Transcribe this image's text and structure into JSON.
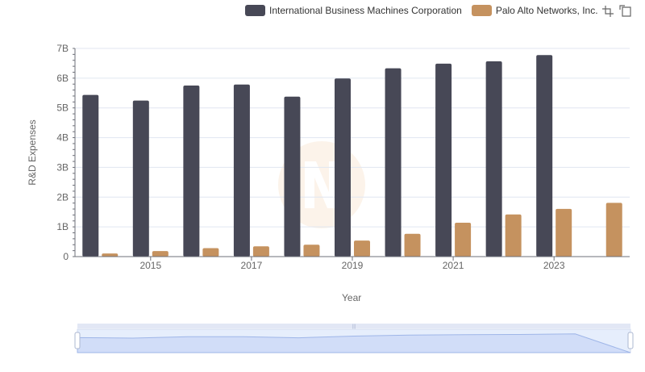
{
  "chart_data": {
    "type": "bar",
    "categories": [
      "2014",
      "2015",
      "2016",
      "2017",
      "2018",
      "2019",
      "2020",
      "2021",
      "2022",
      "2023",
      "2024"
    ],
    "x_tick_labels": [
      "2015",
      "2017",
      "2019",
      "2021",
      "2023"
    ],
    "series": [
      {
        "name": "International Business Machines Corporation",
        "color": "#474856",
        "values": [
          5437000000,
          5247000000,
          5751000000,
          5787000000,
          5379000000,
          5989000000,
          6333000000,
          6488000000,
          6567000000,
          6775000000,
          null
        ]
      },
      {
        "name": "Palo Alto Networks, Inc.",
        "color": "#c5925f",
        "values": [
          104000000,
          185000000,
          285000000,
          347000000,
          400000000,
          539000000,
          768000000,
          1140000000,
          1418000000,
          1604000000,
          1809000000
        ]
      }
    ],
    "ylabel": "R&D Expenses",
    "xlabel": "Year",
    "y_tick_labels": [
      "0",
      "1B",
      "2B",
      "3B",
      "4B",
      "5B",
      "6B",
      "7B"
    ],
    "ylim": [
      0,
      7000000000
    ],
    "grid": true,
    "legend_position": "top-right"
  },
  "ui": {
    "toolbox": [
      "zoom-icon",
      "restore-icon"
    ],
    "data_zoom": {
      "start_fraction": 0,
      "end_fraction": 1
    }
  }
}
